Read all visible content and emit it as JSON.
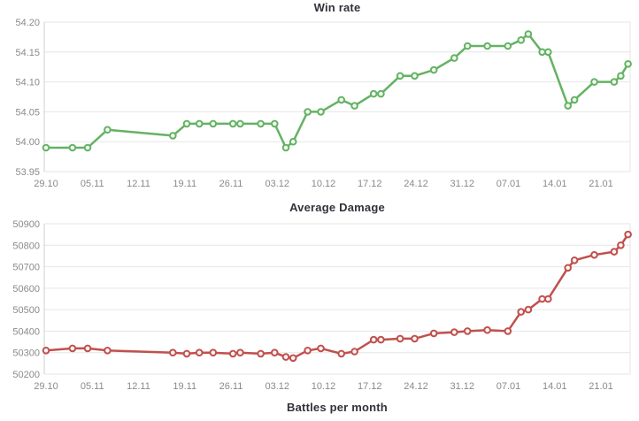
{
  "chart_data": [
    {
      "type": "line",
      "title": "Win rate",
      "legend": "none",
      "grid": true,
      "color": "#64b264",
      "marker_fill": "#f2faf2",
      "axis_label_color": "#8a8a8a",
      "ylim": [
        53.95,
        54.2
      ],
      "y_tick_labels": [
        "54.20",
        "54.15",
        "54.10",
        "54.05",
        "54.00",
        "53.95"
      ],
      "x_tick_labels": [
        "29.10",
        "05.11",
        "12.11",
        "19.11",
        "26.11",
        "03.12",
        "10.12",
        "17.12",
        "24.12",
        "31.12",
        "07.01",
        "14.01",
        "21.01"
      ],
      "x_days": [
        0,
        4,
        6.3,
        9.3,
        19.2,
        21.3,
        23.2,
        25.3,
        28.3,
        29.4,
        32.5,
        34.6,
        36.3,
        37.4,
        39.6,
        41.6,
        44.7,
        46.7,
        49.6,
        50.7,
        53.6,
        55.8,
        58.7,
        61.8,
        63.8,
        66.8,
        69.9,
        71.9,
        73.0,
        75.1,
        76.0,
        79.0,
        80.0,
        83.0,
        86.0,
        87.0,
        88.1
      ],
      "values": [
        53.99,
        53.99,
        53.99,
        54.02,
        54.01,
        54.03,
        54.03,
        54.03,
        54.03,
        54.03,
        54.03,
        54.03,
        53.99,
        54.0,
        54.05,
        54.05,
        54.07,
        54.06,
        54.08,
        54.08,
        54.11,
        54.11,
        54.12,
        54.14,
        54.16,
        54.16,
        54.16,
        54.17,
        54.18,
        54.15,
        54.15,
        54.06,
        54.07,
        54.1,
        54.1,
        54.11,
        54.13
      ]
    },
    {
      "type": "line",
      "title": "Average Damage",
      "legend": "none",
      "grid": true,
      "color": "#c0504d",
      "marker_fill": "#fcf6f6",
      "axis_label_color": "#8a8a8a",
      "ylim": [
        50200,
        50900
      ],
      "y_tick_labels": [
        "50900",
        "50800",
        "50700",
        "50600",
        "50500",
        "50400",
        "50300",
        "50200"
      ],
      "x_tick_labels": [
        "29.10",
        "05.11",
        "12.11",
        "19.11",
        "26.11",
        "03.12",
        "10.12",
        "17.12",
        "24.12",
        "31.12",
        "07.01",
        "14.01",
        "21.01"
      ],
      "x_days": [
        0,
        4,
        6.3,
        9.3,
        19.2,
        21.3,
        23.2,
        25.3,
        28.3,
        29.4,
        32.5,
        34.6,
        36.3,
        37.4,
        39.6,
        41.6,
        44.7,
        46.7,
        49.6,
        50.7,
        53.6,
        55.8,
        58.7,
        61.8,
        63.8,
        66.8,
        69.9,
        71.9,
        73.0,
        75.1,
        76.0,
        79.0,
        80.0,
        83.0,
        86.0,
        87.0,
        88.1
      ],
      "values": [
        50310,
        50320,
        50320,
        50310,
        50300,
        50295,
        50300,
        50300,
        50295,
        50300,
        50295,
        50300,
        50280,
        50275,
        50310,
        50320,
        50295,
        50305,
        50360,
        50360,
        50365,
        50365,
        50390,
        50395,
        50400,
        50405,
        50400,
        50490,
        50500,
        50550,
        50550,
        50695,
        50730,
        50755,
        50770,
        50800,
        50850
      ]
    }
  ],
  "next_chart_title": "Battles per month",
  "colors": {
    "gridline": "#e6e6e6",
    "axis_line": "#cfcfcf",
    "title_text": "#32323a",
    "axis_text": "#8a8a8a"
  }
}
